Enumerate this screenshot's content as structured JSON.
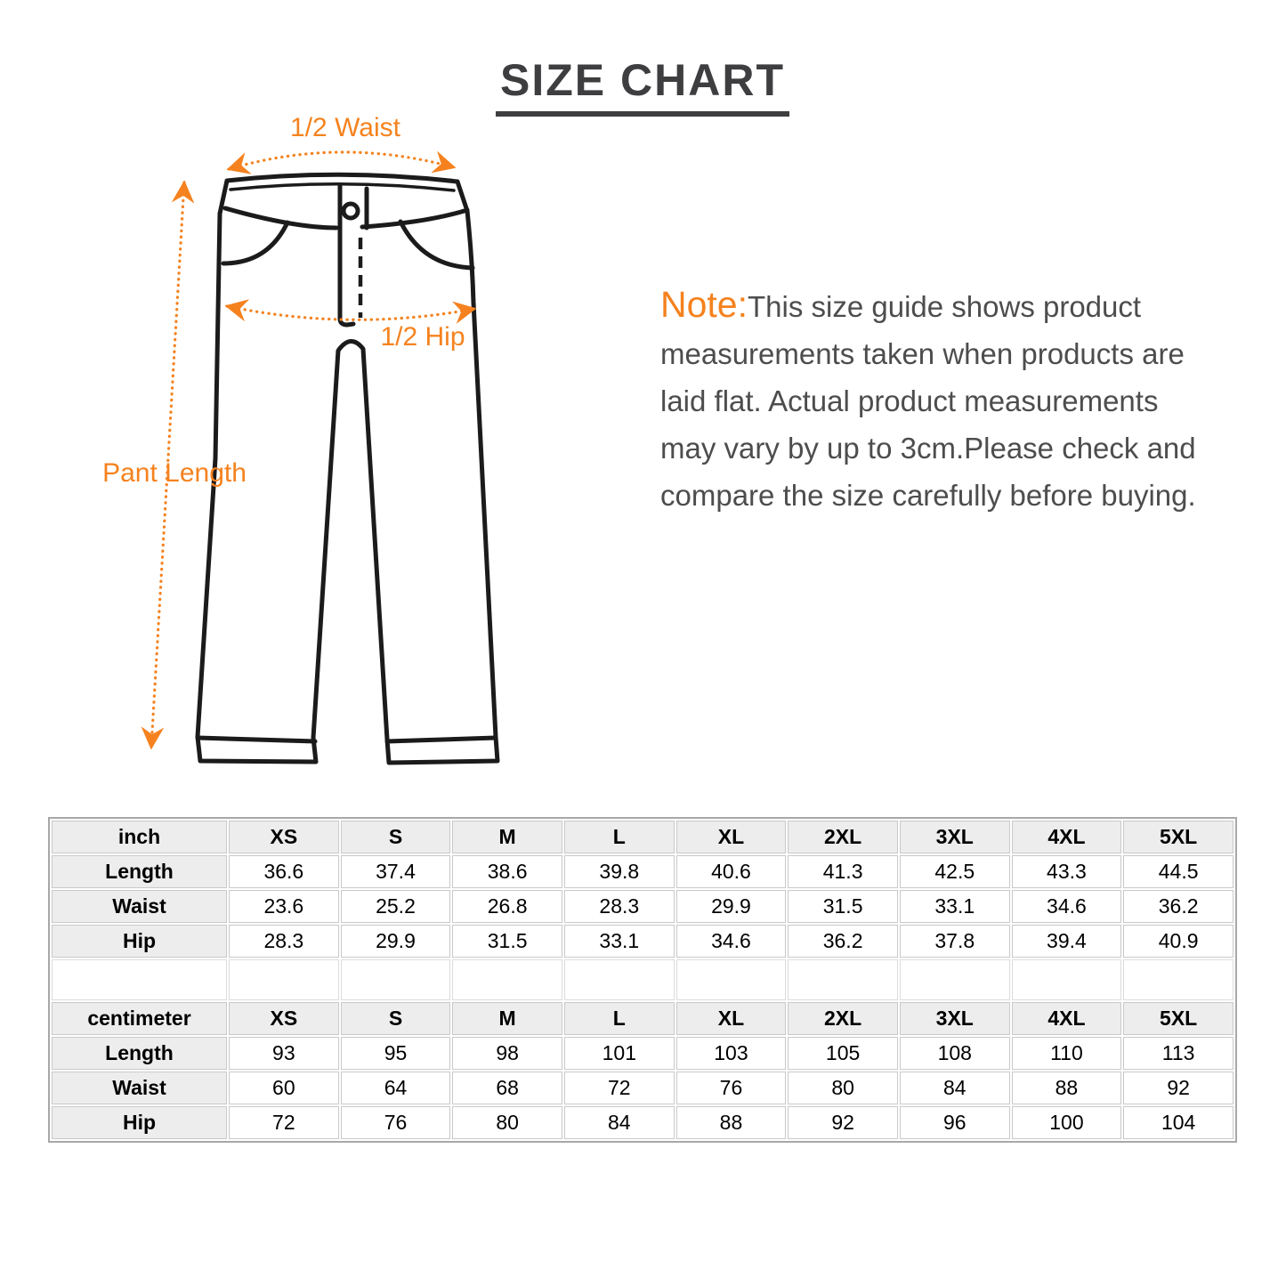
{
  "title": {
    "text": "SIZE CHART"
  },
  "diagram": {
    "waist_label": "1/2 Waist",
    "hip_label": "1/2 Hip",
    "length_label": "Pant Length",
    "accent_color": "#f5821e",
    "outline_color": "#1b1b1b"
  },
  "note": {
    "prefix": "Note:",
    "text": "This size guide shows product measurements taken when products are laid flat. Actual product measurements may vary by up to 3cm.Please check and compare the size carefully before buying."
  },
  "size_table": {
    "columns": [
      "XS",
      "S",
      "M",
      "L",
      "XL",
      "2XL",
      "3XL",
      "4XL",
      "5XL"
    ],
    "sections": [
      {
        "unit_label": "inch",
        "rows": [
          {
            "label": "Length",
            "values": [
              "36.6",
              "37.4",
              "38.6",
              "39.8",
              "40.6",
              "41.3",
              "42.5",
              "43.3",
              "44.5"
            ]
          },
          {
            "label": "Waist",
            "values": [
              "23.6",
              "25.2",
              "26.8",
              "28.3",
              "29.9",
              "31.5",
              "33.1",
              "34.6",
              "36.2"
            ]
          },
          {
            "label": "Hip",
            "values": [
              "28.3",
              "29.9",
              "31.5",
              "33.1",
              "34.6",
              "36.2",
              "37.8",
              "39.4",
              "40.9"
            ]
          }
        ]
      },
      {
        "unit_label": "centimeter",
        "rows": [
          {
            "label": "Length",
            "values": [
              "93",
              "95",
              "98",
              "101",
              "103",
              "105",
              "108",
              "110",
              "113"
            ]
          },
          {
            "label": "Waist",
            "values": [
              "60",
              "64",
              "68",
              "72",
              "76",
              "80",
              "84",
              "88",
              "92"
            ]
          },
          {
            "label": "Hip",
            "values": [
              "72",
              "76",
              "80",
              "84",
              "88",
              "92",
              "96",
              "100",
              "104"
            ]
          }
        ]
      }
    ]
  }
}
